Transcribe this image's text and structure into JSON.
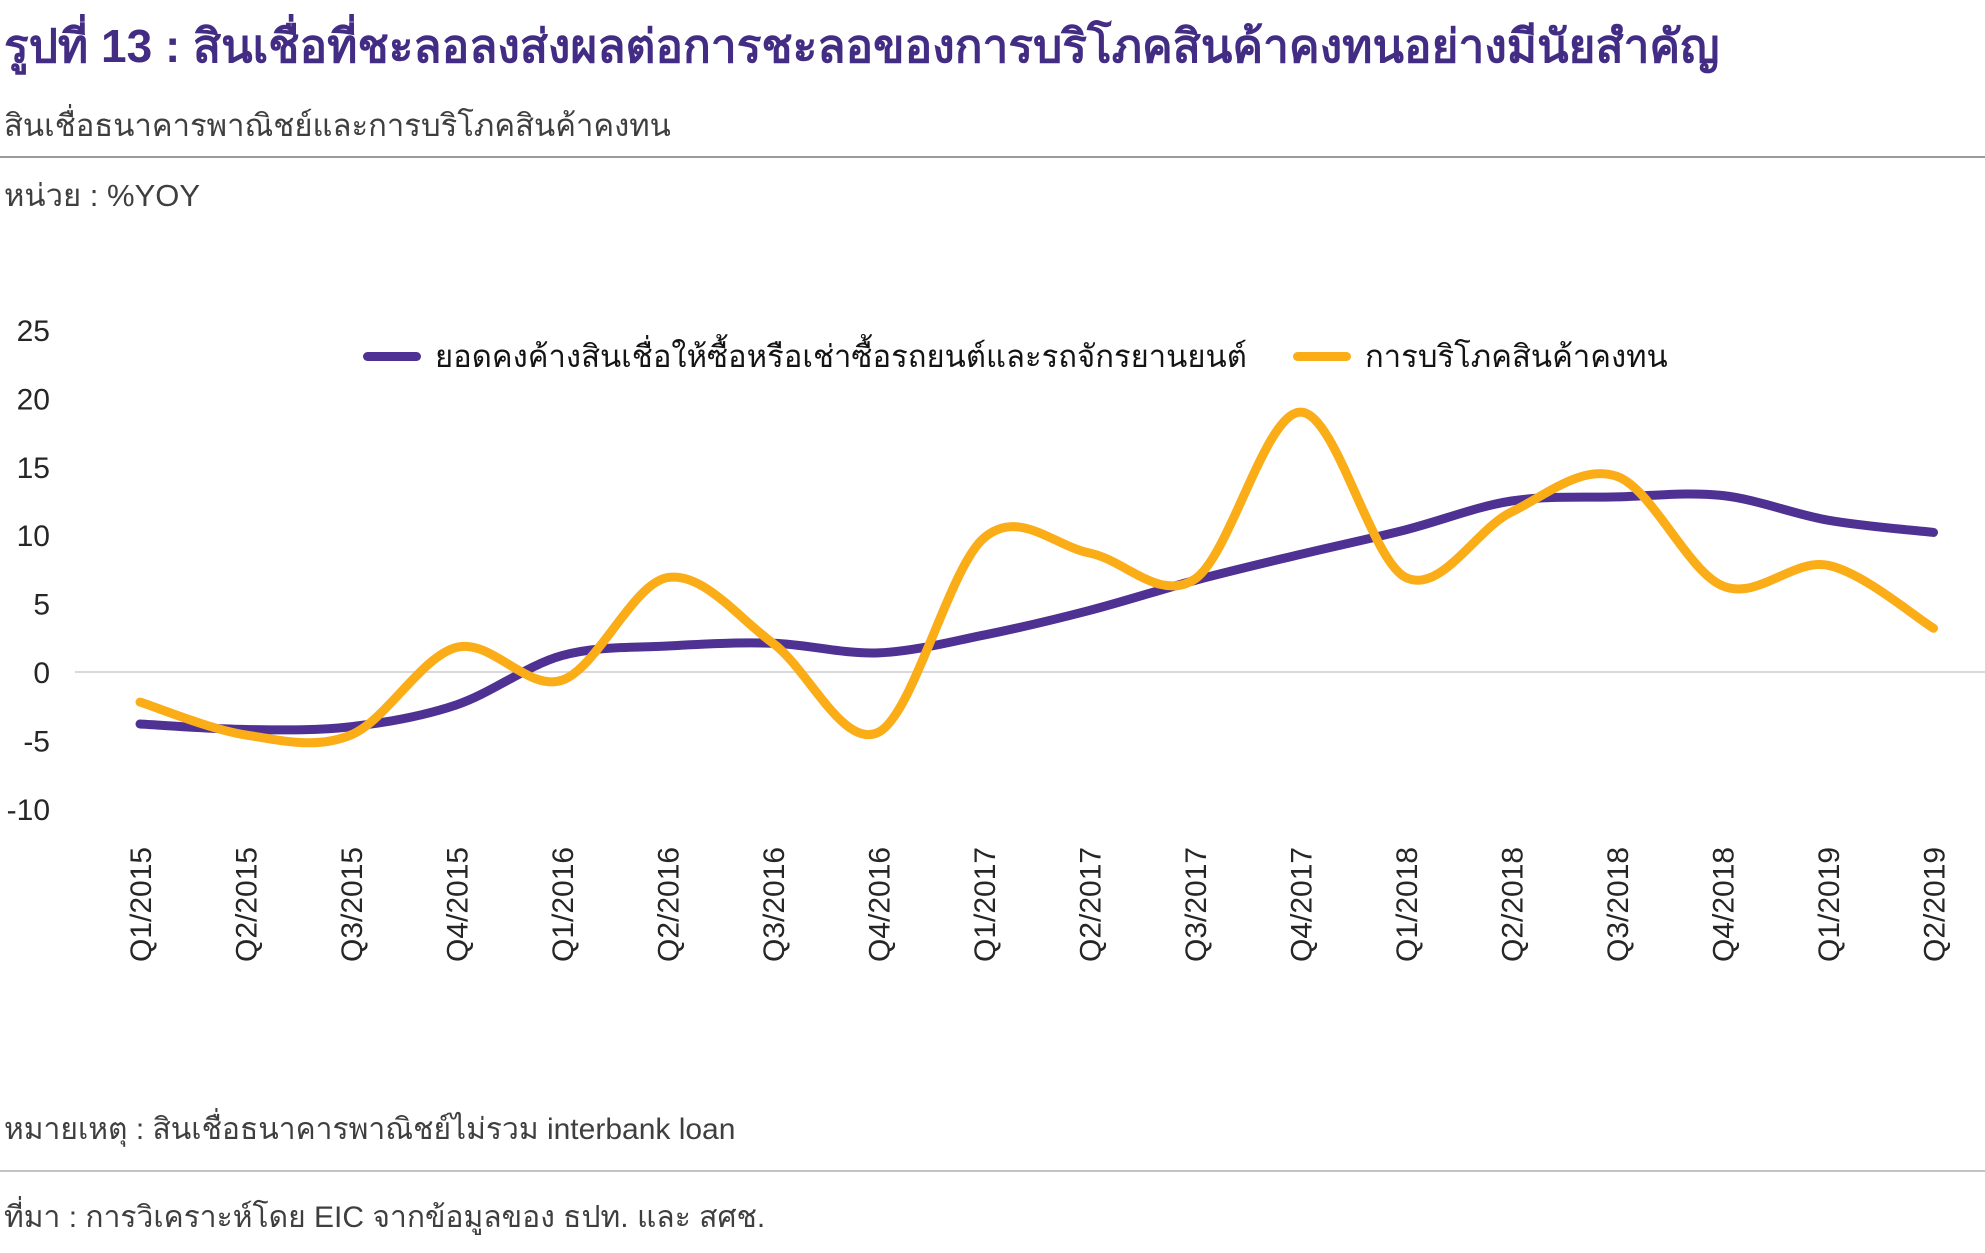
{
  "header": {
    "title": "รูปที่ 13 : สินเชื่อที่ชะลอลงส่งผลต่อการชะลอของการบริโภคสินค้าคงทนอย่างมีนัยสำคัญ",
    "subtitle": "สินเชื่อธนาคารพาณิชย์และการบริโภคสินค้าคงทน",
    "unit_label": "หน่วย : %YOY"
  },
  "footer": {
    "note": "หมายเหตุ : สินเชื่อธนาคารพาณิชย์ไม่รวม interbank loan",
    "source": "ที่มา : การวิเคราะห์โดย EIC จากข้อมูลของ ธปท. และ สศช."
  },
  "colors": {
    "title": "#432d84",
    "loan_line": "#4e3192",
    "consumption_line": "#fbad18",
    "zero_gridline": "#d9d9d9",
    "divider_top": "#9a9a9a",
    "divider_bottom": "#c4c4c4"
  },
  "chart_data": {
    "type": "line",
    "title": "",
    "unit": "%YOY",
    "categories": [
      "Q1/2015",
      "Q2/2015",
      "Q3/2015",
      "Q4/2015",
      "Q1/2016",
      "Q2/2016",
      "Q3/2016",
      "Q4/2016",
      "Q1/2017",
      "Q2/2017",
      "Q3/2017",
      "Q4/2017",
      "Q1/2018",
      "Q2/2018",
      "Q3/2018",
      "Q4/2018",
      "Q1/2019",
      "Q2/2019"
    ],
    "series": [
      {
        "name": "ยอดคงค้างสินเชื่อให้ซื้อหรือเช่าซื้อรถยนต์และรถจักรยานยนต์",
        "color": "#4e3192",
        "values": [
          -3.8,
          -4.2,
          -4.0,
          -2.4,
          1.2,
          1.9,
          2.1,
          1.4,
          2.7,
          4.5,
          6.7,
          8.6,
          10.4,
          12.5,
          12.8,
          12.9,
          11.1,
          10.2
        ]
      },
      {
        "name": "การบริโภคสินค้าคงทน",
        "color": "#fbad18",
        "values": [
          -2.2,
          -4.6,
          -4.6,
          1.8,
          -0.6,
          6.9,
          2.1,
          -4.4,
          9.8,
          8.7,
          6.8,
          19.0,
          6.9,
          11.7,
          14.3,
          6.3,
          7.8,
          3.2
        ]
      }
    ],
    "y_ticks": [
      25,
      20,
      15,
      10,
      5,
      0,
      -5,
      -10
    ],
    "ylim": [
      -10,
      25
    ],
    "grid": "zero-line-only",
    "legend_position": "top",
    "smooth": true
  }
}
